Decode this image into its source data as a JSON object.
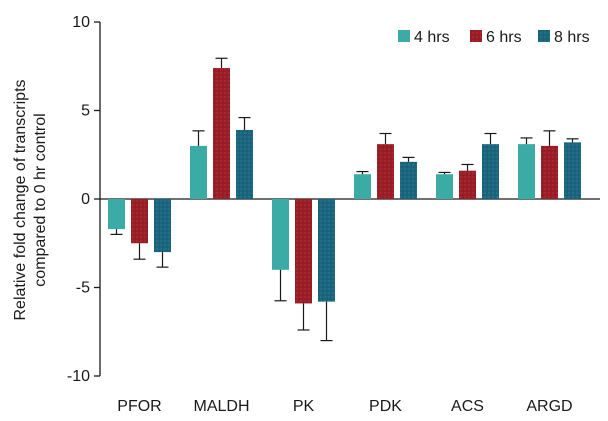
{
  "chart_data": {
    "type": "bar",
    "title": "",
    "xlabel": "",
    "ylabel_lines": [
      "Relative fold change of transcripts",
      "compared to 0 hr control"
    ],
    "ylim": [
      -10,
      10
    ],
    "yticks": [
      10,
      5,
      0,
      -5,
      -10
    ],
    "categories": [
      "PFOR",
      "MALDH",
      "PK",
      "PDK",
      "ACS",
      "ARGD"
    ],
    "series": [
      {
        "name": "4 hrs",
        "color": "#3aaca5",
        "pattern": "solid",
        "values": [
          -1.7,
          3.0,
          -4.0,
          1.4,
          1.4,
          3.1
        ],
        "errors": [
          0.3,
          0.85,
          1.75,
          0.15,
          0.1,
          0.35
        ]
      },
      {
        "name": "6 hrs",
        "color": "#9b1e27",
        "pattern": "dots",
        "values": [
          -2.5,
          7.4,
          -5.9,
          3.1,
          1.6,
          3.0
        ],
        "errors": [
          0.9,
          0.55,
          1.5,
          0.6,
          0.35,
          0.85
        ]
      },
      {
        "name": "8 hrs",
        "color": "#1b667f",
        "pattern": "dots",
        "values": [
          -3.0,
          3.9,
          -5.8,
          2.1,
          3.1,
          3.2
        ],
        "errors": [
          0.85,
          0.7,
          2.2,
          0.25,
          0.6,
          0.2
        ]
      }
    ],
    "legend_position": "top-right"
  }
}
